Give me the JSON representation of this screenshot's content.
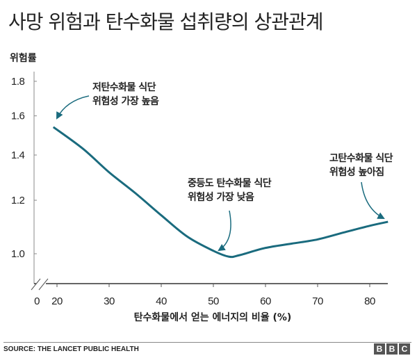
{
  "title": "사망 위험과 탄수화물 섭취량의 상관관계",
  "source": "SOURCE: THE LANCET PUBLIC HEALTH",
  "logo": [
    "B",
    "B",
    "C"
  ],
  "chart_data": {
    "type": "line",
    "title": "사망 위험과 탄수화물 섭취량의 상관관계",
    "ylabel": "위험률",
    "xlabel": "탄수화물에서 얻는 에너지의 비율 (%)",
    "y_scale": "log",
    "ylim": [
      0.9,
      1.85
    ],
    "xlim": [
      16,
      84
    ],
    "x_axis_break": true,
    "yticks": [
      "1.8",
      "1.6",
      "1.4",
      "1.2",
      "1.0"
    ],
    "ytick_values": [
      1.8,
      1.6,
      1.4,
      1.2,
      1.0
    ],
    "xticks": [
      "0",
      "20",
      "30",
      "40",
      "50",
      "60",
      "70",
      "80"
    ],
    "xtick_values": [
      null,
      20,
      30,
      40,
      50,
      60,
      70,
      80
    ],
    "color": "#1a6b7e",
    "series": [
      {
        "name": "위험률",
        "x": [
          19.3,
          25,
          30,
          35,
          40,
          45,
          50,
          53,
          55,
          60,
          65,
          70,
          75,
          80,
          83.5
        ],
        "y": [
          1.54,
          1.43,
          1.32,
          1.23,
          1.14,
          1.06,
          1.01,
          0.99,
          0.995,
          1.02,
          1.035,
          1.05,
          1.075,
          1.1,
          1.115
        ]
      }
    ],
    "annotations": [
      {
        "lines": [
          "저탄수화물 식단",
          "위험성 가장 높음"
        ],
        "x": 19.3,
        "y": 1.54
      },
      {
        "lines": [
          "중등도 탄수화물 식단",
          "위험성 가장 낮음"
        ],
        "x": 52,
        "y": 0.995
      },
      {
        "lines": [
          "고탄수화물 식단",
          "위험성 높아짐"
        ],
        "x": 82,
        "y": 1.11
      }
    ]
  }
}
